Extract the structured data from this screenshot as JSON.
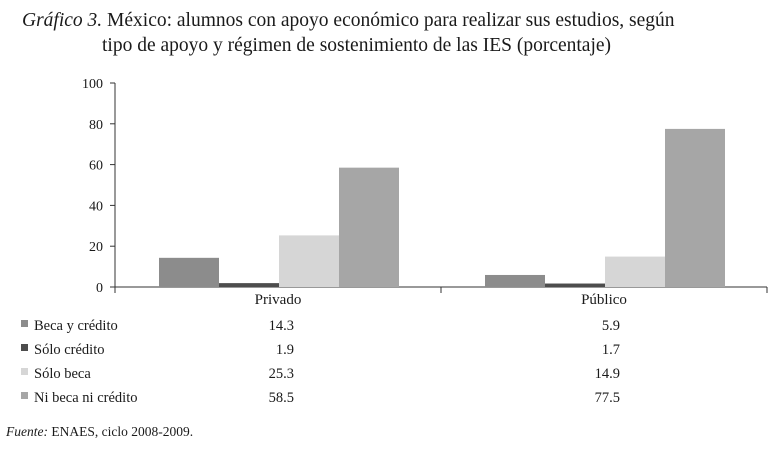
{
  "title": {
    "prefix": "Gráfico 3.",
    "line1": "México: alumnos con apoyo económico para realizar sus estudios, según",
    "line2": "tipo de apoyo y régimen de sostenimiento de las IES (porcentaje)"
  },
  "source": {
    "label": "Fuente:",
    "text": "ENAES, ciclo 2008-2009."
  },
  "chart_data": {
    "type": "bar",
    "categories": [
      "Privado",
      "Público"
    ],
    "series": [
      {
        "name": "Beca y crédito",
        "values": [
          14.3,
          5.9
        ],
        "labels": [
          "14.3",
          "5.9"
        ],
        "color": "#8c8c8c"
      },
      {
        "name": "Sólo crédito",
        "values": [
          1.9,
          1.7
        ],
        "labels": [
          "1.9",
          "1.7"
        ],
        "color": "#4d4d4d"
      },
      {
        "name": "Sólo beca",
        "values": [
          25.3,
          14.9
        ],
        "labels": [
          "25.3",
          "14.9"
        ],
        "color": "#d6d6d6"
      },
      {
        "name": "Ni beca ni crédito",
        "values": [
          58.5,
          77.5
        ],
        "labels": [
          "58.5",
          "77.5"
        ],
        "color": "#a6a6a6"
      }
    ],
    "ylim": [
      0,
      100
    ],
    "yticks": [
      0,
      20,
      40,
      60,
      80,
      100
    ],
    "grid": false,
    "legend": "data-table-below"
  }
}
